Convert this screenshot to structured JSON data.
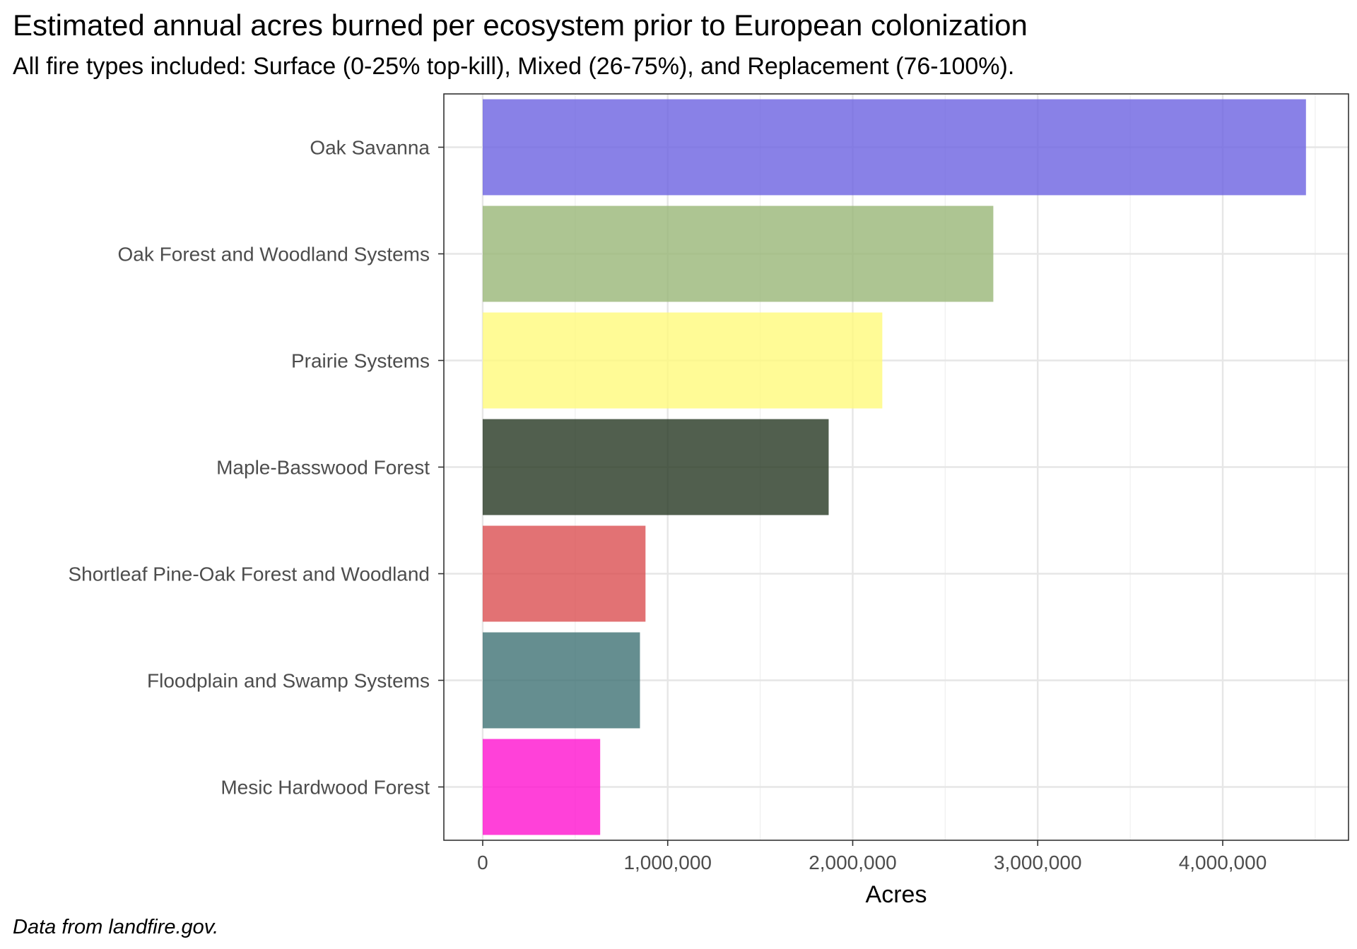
{
  "chart_data": {
    "type": "bar",
    "orientation": "horizontal",
    "title": "Estimated annual acres burned per ecosystem prior to European colonization",
    "subtitle": "All fire types included: Surface (0-25% top-kill), Mixed (26-75%), and Replacement (76-100%).",
    "caption": "Data from landfire.gov.",
    "xlabel": "Acres",
    "ylabel": "",
    "xlim": [
      -210000,
      4680000
    ],
    "x_ticks": [
      0,
      1000000,
      2000000,
      3000000,
      4000000
    ],
    "x_tick_labels": [
      "0",
      "1,000,000",
      "2,000,000",
      "3,000,000",
      "4,000,000"
    ],
    "grid": true,
    "legend": "none",
    "categories": [
      "Oak Savanna",
      "Oak Forest and Woodland Systems",
      "Prairie Systems",
      "Maple-Basswood Forest",
      "Shortleaf Pine-Oak Forest and Woodland",
      "Floodplain and Swamp Systems",
      "Mesic Hardwood Forest"
    ],
    "values": [
      4450000,
      2760000,
      2160000,
      1870000,
      880000,
      850000,
      635000
    ],
    "colors": [
      "#6c61e1",
      "#98b677",
      "#fffa7c",
      "#253722",
      "#db4f51",
      "#3e7274",
      "#ff11d0"
    ]
  }
}
